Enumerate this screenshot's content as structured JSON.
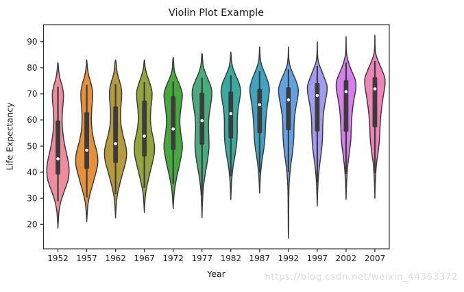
{
  "title": "Violin Plot Example",
  "watermark": "https://blog.csdn.net/weixin_44363372",
  "style": {
    "edge_color": "#3a3a3a",
    "box_color": "#3c3c3c",
    "whisker_color": "#3c3c3c",
    "median_dot_color": "#ffffff",
    "axis_color": "#2e2e2e",
    "text_color": "#1a1a1a",
    "watermark_color": "#dbdbe0",
    "background": "#ffffff"
  },
  "chart_data": {
    "type": "violin",
    "title": "Violin Plot Example",
    "xlabel": "Year",
    "ylabel": "Life Expectancy",
    "ylim": [
      11,
      96.5
    ],
    "yticks": [
      20,
      30,
      40,
      50,
      60,
      70,
      80,
      90
    ],
    "grid": false,
    "legend": null,
    "categories": [
      "1952",
      "1957",
      "1962",
      "1967",
      "1972",
      "1977",
      "1982",
      "1987",
      "1992",
      "1997",
      "2002",
      "2007"
    ],
    "series": [
      {
        "year": "1952",
        "color": "#ee8c9e",
        "median": 45.1,
        "q1": 39.1,
        "q3": 59.8,
        "whisker_low": 28.8,
        "whisker_high": 72.7,
        "kde_min": 18.5,
        "kde_max": 82.0,
        "profile": [
          [
            18.5,
            0
          ],
          [
            21,
            0.03
          ],
          [
            25,
            0.1
          ],
          [
            29,
            0.28
          ],
          [
            33,
            0.6
          ],
          [
            37,
            0.92
          ],
          [
            40,
            1.0
          ],
          [
            43,
            0.97
          ],
          [
            47,
            0.78
          ],
          [
            51,
            0.58
          ],
          [
            55,
            0.45
          ],
          [
            59,
            0.38
          ],
          [
            63,
            0.4
          ],
          [
            67,
            0.48
          ],
          [
            70,
            0.5
          ],
          [
            73,
            0.38
          ],
          [
            76,
            0.18
          ],
          [
            79,
            0.07
          ],
          [
            82,
            0
          ]
        ]
      },
      {
        "year": "1957",
        "color": "#e5913c",
        "median": 48.4,
        "q1": 41.2,
        "q3": 63.0,
        "whisker_low": 30.3,
        "whisker_high": 73.5,
        "kde_min": 21.0,
        "kde_max": 83.0,
        "profile": [
          [
            21,
            0
          ],
          [
            24,
            0.04
          ],
          [
            28,
            0.12
          ],
          [
            32,
            0.32
          ],
          [
            37,
            0.65
          ],
          [
            42,
            0.95
          ],
          [
            45,
            1.0
          ],
          [
            48,
            0.9
          ],
          [
            52,
            0.65
          ],
          [
            56,
            0.48
          ],
          [
            60,
            0.42
          ],
          [
            64,
            0.45
          ],
          [
            68,
            0.52
          ],
          [
            71,
            0.52
          ],
          [
            74,
            0.38
          ],
          [
            77,
            0.18
          ],
          [
            80,
            0.06
          ],
          [
            83,
            0
          ]
        ]
      },
      {
        "year": "1962",
        "color": "#b69a3e",
        "median": 50.9,
        "q1": 43.5,
        "q3": 65.2,
        "whisker_low": 31.6,
        "whisker_high": 73.7,
        "kde_min": 22.5,
        "kde_max": 83.0,
        "profile": [
          [
            22.5,
            0
          ],
          [
            26,
            0.04
          ],
          [
            30,
            0.12
          ],
          [
            34,
            0.3
          ],
          [
            39,
            0.6
          ],
          [
            44,
            0.92
          ],
          [
            47,
            1.0
          ],
          [
            50,
            0.92
          ],
          [
            54,
            0.68
          ],
          [
            58,
            0.5
          ],
          [
            62,
            0.45
          ],
          [
            66,
            0.5
          ],
          [
            69,
            0.55
          ],
          [
            72,
            0.52
          ],
          [
            75,
            0.35
          ],
          [
            78,
            0.15
          ],
          [
            83,
            0
          ]
        ]
      },
      {
        "year": "1967",
        "color": "#94a43e",
        "median": 53.8,
        "q1": 46.0,
        "q3": 67.4,
        "whisker_low": 34.0,
        "whisker_high": 74.5,
        "kde_min": 24.5,
        "kde_max": 83.0,
        "profile": [
          [
            24.5,
            0
          ],
          [
            28,
            0.04
          ],
          [
            32,
            0.12
          ],
          [
            36,
            0.3
          ],
          [
            41,
            0.58
          ],
          [
            46,
            0.85
          ],
          [
            49,
            0.92
          ],
          [
            52,
            0.85
          ],
          [
            56,
            0.65
          ],
          [
            60,
            0.55
          ],
          [
            64,
            0.58
          ],
          [
            68,
            0.68
          ],
          [
            71,
            0.68
          ],
          [
            74,
            0.5
          ],
          [
            77,
            0.25
          ],
          [
            80,
            0.08
          ],
          [
            83,
            0
          ]
        ]
      },
      {
        "year": "1972",
        "color": "#46a93e",
        "median": 56.5,
        "q1": 48.5,
        "q3": 69.2,
        "whisker_low": 35.4,
        "whisker_high": 74.7,
        "kde_min": 26.0,
        "kde_max": 84.0,
        "profile": [
          [
            26,
            0
          ],
          [
            29,
            0.04
          ],
          [
            33,
            0.12
          ],
          [
            38,
            0.32
          ],
          [
            43,
            0.58
          ],
          [
            48,
            0.8
          ],
          [
            51,
            0.82
          ],
          [
            55,
            0.68
          ],
          [
            59,
            0.6
          ],
          [
            63,
            0.65
          ],
          [
            67,
            0.78
          ],
          [
            70,
            0.82
          ],
          [
            73,
            0.62
          ],
          [
            76,
            0.32
          ],
          [
            79,
            0.1
          ],
          [
            84,
            0
          ]
        ]
      },
      {
        "year": "1977",
        "color": "#48ac7c",
        "median": 59.7,
        "q1": 50.5,
        "q3": 70.4,
        "whisker_low": 31.2,
        "whisker_high": 76.1,
        "kde_min": 22.5,
        "kde_max": 85.5,
        "profile": [
          [
            22.5,
            0
          ],
          [
            26,
            0.02
          ],
          [
            30,
            0.06
          ],
          [
            34,
            0.12
          ],
          [
            39,
            0.28
          ],
          [
            44,
            0.48
          ],
          [
            49,
            0.62
          ],
          [
            53,
            0.62
          ],
          [
            57,
            0.58
          ],
          [
            61,
            0.62
          ],
          [
            65,
            0.75
          ],
          [
            69,
            0.88
          ],
          [
            72,
            0.85
          ],
          [
            75,
            0.6
          ],
          [
            78,
            0.3
          ],
          [
            81,
            0.1
          ],
          [
            85.5,
            0
          ]
        ]
      },
      {
        "year": "1982",
        "color": "#3aaaa0",
        "median": 62.4,
        "q1": 52.9,
        "q3": 70.9,
        "whisker_low": 38.4,
        "whisker_high": 77.1,
        "kde_min": 29.5,
        "kde_max": 86.0,
        "profile": [
          [
            29.5,
            0
          ],
          [
            33,
            0.03
          ],
          [
            37,
            0.08
          ],
          [
            42,
            0.2
          ],
          [
            47,
            0.4
          ],
          [
            52,
            0.55
          ],
          [
            56,
            0.58
          ],
          [
            60,
            0.58
          ],
          [
            64,
            0.65
          ],
          [
            68,
            0.8
          ],
          [
            71,
            0.88
          ],
          [
            74,
            0.75
          ],
          [
            77,
            0.45
          ],
          [
            80,
            0.18
          ],
          [
            83,
            0.05
          ],
          [
            86,
            0
          ]
        ]
      },
      {
        "year": "1987",
        "color": "#3ea4c0",
        "median": 65.8,
        "q1": 54.9,
        "q3": 71.9,
        "whisker_low": 39.9,
        "whisker_high": 78.7,
        "kde_min": 32.0,
        "kde_max": 88.0,
        "profile": [
          [
            32,
            0
          ],
          [
            35,
            0.03
          ],
          [
            39,
            0.08
          ],
          [
            44,
            0.2
          ],
          [
            49,
            0.38
          ],
          [
            53,
            0.48
          ],
          [
            57,
            0.52
          ],
          [
            61,
            0.58
          ],
          [
            65,
            0.68
          ],
          [
            69,
            0.82
          ],
          [
            72,
            0.88
          ],
          [
            75,
            0.72
          ],
          [
            78,
            0.45
          ],
          [
            81,
            0.18
          ],
          [
            84,
            0.05
          ],
          [
            88,
            0
          ]
        ]
      },
      {
        "year": "1992",
        "color": "#62a1e6",
        "median": 67.7,
        "q1": 56.1,
        "q3": 72.5,
        "whisker_low": 40.0,
        "whisker_high": 79.4,
        "kde_min": 14.7,
        "kde_max": 88.0,
        "profile": [
          [
            14.7,
            0
          ],
          [
            18,
            0.015
          ],
          [
            22,
            0.02
          ],
          [
            26,
            0.025
          ],
          [
            30,
            0.03
          ],
          [
            34,
            0.05
          ],
          [
            38,
            0.1
          ],
          [
            43,
            0.22
          ],
          [
            48,
            0.38
          ],
          [
            53,
            0.48
          ],
          [
            57,
            0.5
          ],
          [
            61,
            0.55
          ],
          [
            65,
            0.68
          ],
          [
            69,
            0.85
          ],
          [
            72,
            0.88
          ],
          [
            75,
            0.68
          ],
          [
            78,
            0.38
          ],
          [
            81,
            0.12
          ],
          [
            84,
            0.03
          ],
          [
            88,
            0
          ]
        ]
      },
      {
        "year": "1997",
        "color": "#a39bef",
        "median": 69.4,
        "q1": 55.6,
        "q3": 74.2,
        "whisker_low": 36.1,
        "whisker_high": 80.7,
        "kde_min": 27.0,
        "kde_max": 90.0,
        "profile": [
          [
            27,
            0
          ],
          [
            30,
            0.02
          ],
          [
            34,
            0.05
          ],
          [
            39,
            0.12
          ],
          [
            44,
            0.25
          ],
          [
            49,
            0.4
          ],
          [
            54,
            0.48
          ],
          [
            58,
            0.5
          ],
          [
            62,
            0.55
          ],
          [
            66,
            0.68
          ],
          [
            70,
            0.85
          ],
          [
            73,
            0.88
          ],
          [
            76,
            0.65
          ],
          [
            79,
            0.38
          ],
          [
            82,
            0.12
          ],
          [
            85,
            0.03
          ],
          [
            90,
            0
          ]
        ]
      },
      {
        "year": "2002",
        "color": "#d67fec",
        "median": 70.8,
        "q1": 55.5,
        "q3": 75.3,
        "whisker_low": 39.2,
        "whisker_high": 82.0,
        "kde_min": 29.5,
        "kde_max": 92.0,
        "profile": [
          [
            29.5,
            0
          ],
          [
            33,
            0.02
          ],
          [
            37,
            0.06
          ],
          [
            42,
            0.14
          ],
          [
            47,
            0.28
          ],
          [
            52,
            0.42
          ],
          [
            56,
            0.46
          ],
          [
            60,
            0.5
          ],
          [
            64,
            0.58
          ],
          [
            68,
            0.72
          ],
          [
            72,
            0.88
          ],
          [
            75,
            0.85
          ],
          [
            78,
            0.58
          ],
          [
            81,
            0.3
          ],
          [
            84,
            0.1
          ],
          [
            87,
            0.02
          ],
          [
            92,
            0
          ]
        ]
      },
      {
        "year": "2007",
        "color": "#ee84b8",
        "median": 71.9,
        "q1": 57.2,
        "q3": 76.4,
        "whisker_low": 39.6,
        "whisker_high": 82.6,
        "kde_min": 30.0,
        "kde_max": 92.5,
        "profile": [
          [
            30,
            0
          ],
          [
            34,
            0.02
          ],
          [
            38,
            0.06
          ],
          [
            43,
            0.14
          ],
          [
            48,
            0.3
          ],
          [
            53,
            0.42
          ],
          [
            57,
            0.46
          ],
          [
            61,
            0.52
          ],
          [
            65,
            0.62
          ],
          [
            69,
            0.75
          ],
          [
            73,
            0.9
          ],
          [
            76,
            0.9
          ],
          [
            79,
            0.65
          ],
          [
            82,
            0.35
          ],
          [
            85,
            0.1
          ],
          [
            88,
            0.02
          ],
          [
            92.5,
            0
          ]
        ]
      }
    ]
  }
}
